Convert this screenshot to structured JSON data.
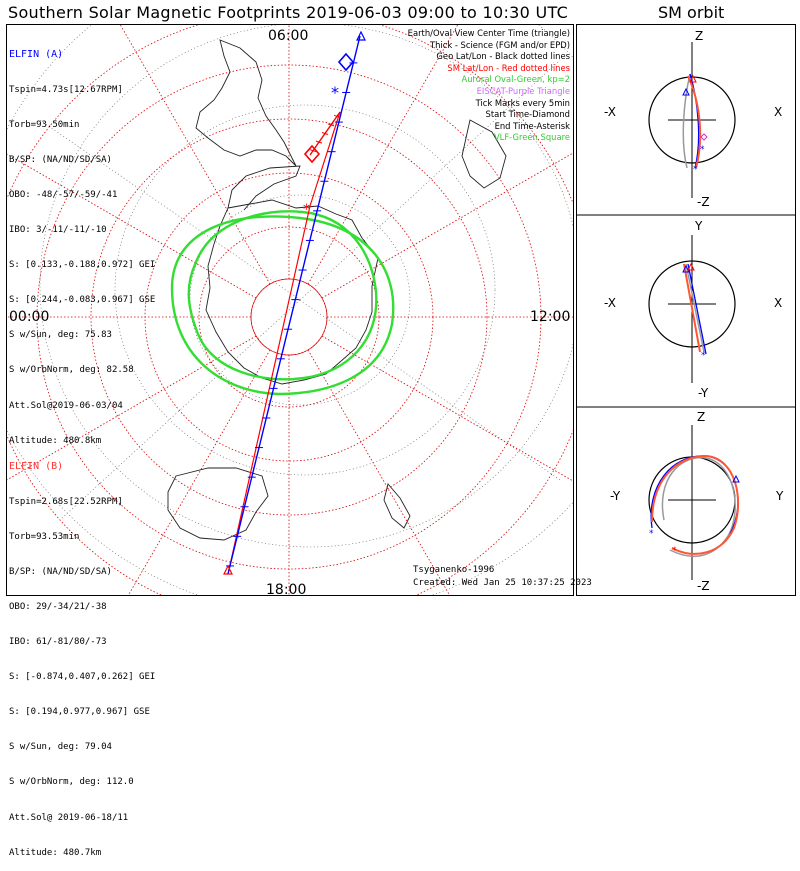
{
  "title": "Southern Solar Magnetic Footprints 2019-06-03 09:00 to 10:30 UTC",
  "sm_orbit_title": "SM orbit",
  "map": {
    "mlt_top": "06:00",
    "mlt_left": "00:00",
    "mlt_right": "12:00",
    "mlt_bottom": "18:00",
    "colors": {
      "elfin_a": "#0000ff",
      "elfin_b": "#ff0000",
      "auroral_oval": "#33dd33",
      "sm_grid": "#dd0000",
      "geo_grid": "#000000",
      "eiscat": "#cc66ff"
    }
  },
  "elfin_a": {
    "name": "ELFIN (A)",
    "lines": [
      "Tspin=4.73s[12.67RPM]",
      "Torb=93.50min",
      "B/SP: (NA/ND/SD/SA)",
      "OBO: -48/-57/-59/-41",
      "IBO: 3/-11/-11/-10",
      "S: [0.133,-0.188,0.972] GEI",
      "S: [0.244,-0.083,0.967] GSE",
      "S w/Sun, deg: 75.83",
      "S w/OrbNorm, deg: 82.58",
      "Att.Sol@2019-06-03/04",
      "Altitude: 480.8km"
    ]
  },
  "elfin_b": {
    "name": "ELFIN (B)",
    "lines": [
      "Tspin=2.68s[22.52RPM]",
      "Torb=93.53min",
      "B/SP: (NA/ND/SD/SA)",
      "OBO: 29/-34/21/-38",
      "IBO: 61/-81/80/-73",
      "S: [-0.874,0.407,0.262] GEI",
      "S: [0.194,0.977,0.967] GSE",
      "S w/Sun, deg: 79.04",
      "S w/OrbNorm, deg: 112.0",
      "Att.Sol@ 2019-06-18/11",
      "Altitude: 480.7km"
    ]
  },
  "legend": [
    {
      "text": "Earth/Oval View Center Time (triangle)",
      "color": "#000000"
    },
    {
      "text": "Thick - Science (FGM and/or EPD)",
      "color": "#000000"
    },
    {
      "text": "Geo Lat/Lon - Black dotted lines",
      "color": "#000000"
    },
    {
      "text": "SM Lat/Lon - Red dotted lines",
      "color": "#ff0000"
    },
    {
      "text": "Auroral Oval-Green, kp=2",
      "color": "#33cc33"
    },
    {
      "text": "EISCAT-Purple Triangle",
      "color": "#cc66ff"
    },
    {
      "text": "Tick Marks every 5min",
      "color": "#000000"
    },
    {
      "text": "Start Time-Diamond",
      "color": "#000000"
    },
    {
      "text": "End Time-Asterisk",
      "color": "#000000"
    },
    {
      "text": "VLF-Green Square",
      "color": "#33cc33"
    }
  ],
  "credit": {
    "author": "Tsyganenko-1996",
    "created": "Created: Wed Jan 25 10:37:25 2023"
  },
  "sm_panels": [
    {
      "top": "Z",
      "bottom": "-Z",
      "left": "-X",
      "right": "X"
    },
    {
      "top": "Y",
      "bottom": "-Y",
      "left": "-X",
      "right": "X"
    },
    {
      "top": "Z",
      "bottom": "-Z",
      "left": "-Y",
      "right": "Y"
    }
  ]
}
